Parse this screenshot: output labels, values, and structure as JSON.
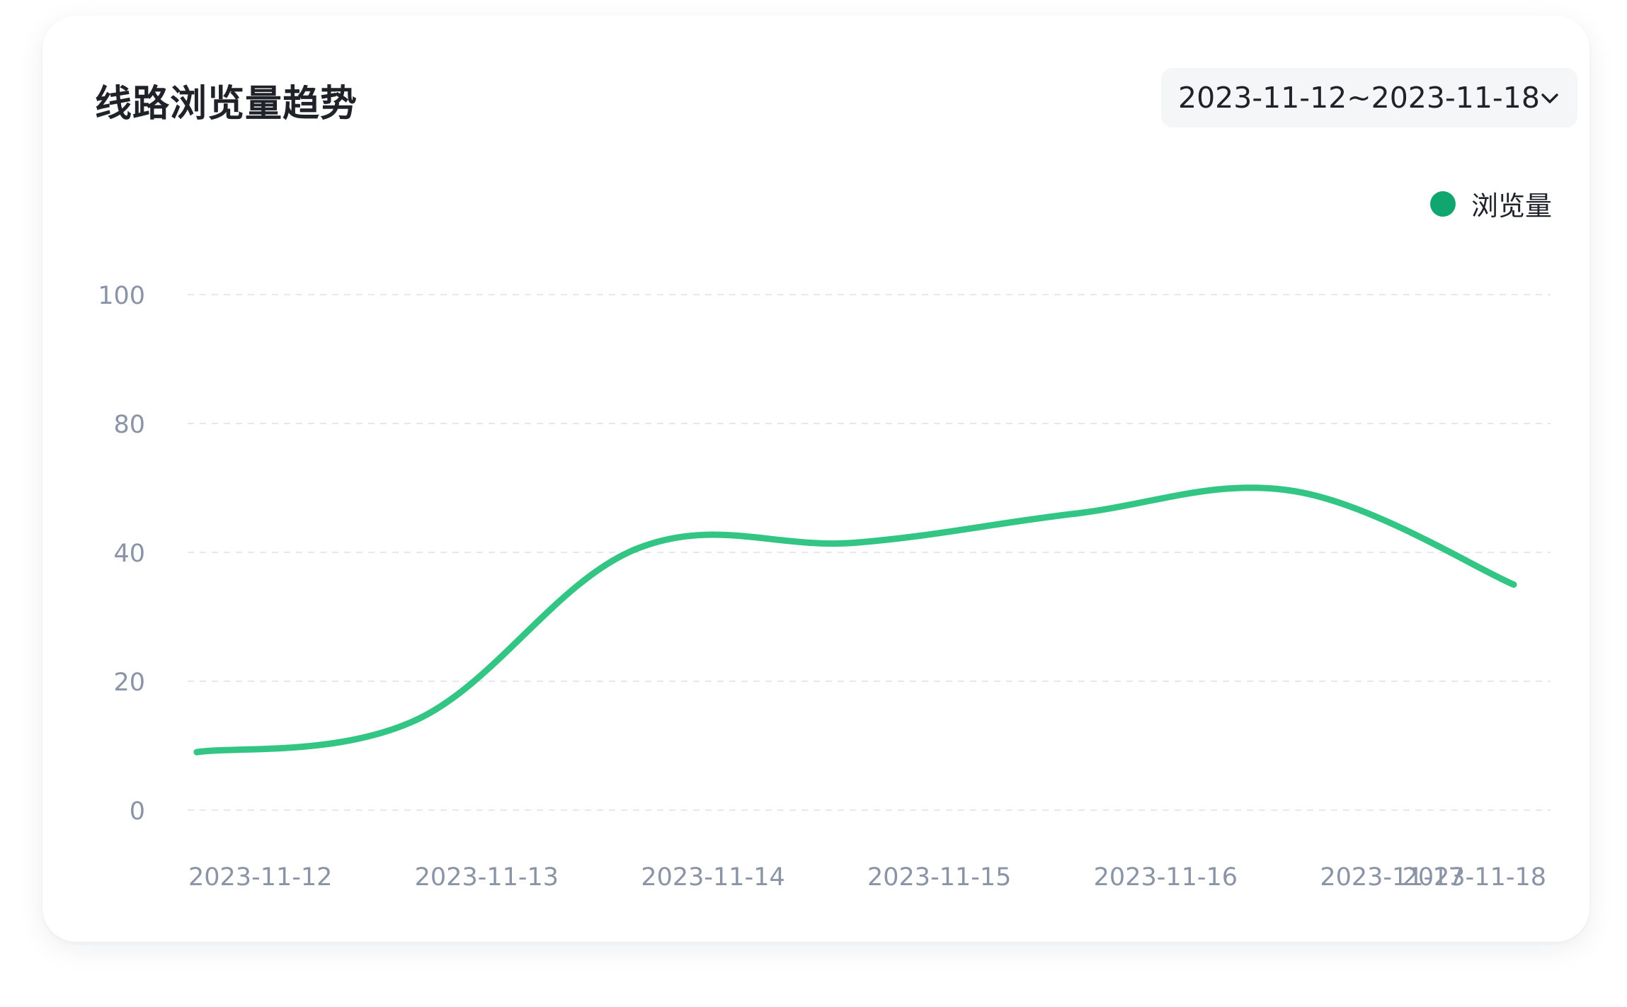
{
  "header": {
    "title": "线路浏览量趋势"
  },
  "range_select": {
    "value": "2023-11-12~2023-11-18",
    "icon": "chevron-down-icon"
  },
  "colors": {
    "line": "#33c584",
    "legend_dot": "#0fa670",
    "grid": "#e5e8ee",
    "tick_text": "#8a94a6"
  },
  "chart_data": {
    "type": "line",
    "categories": [
      "2023-11-12",
      "2023-11-13",
      "2023-11-14",
      "2023-11-15",
      "2023-11-16",
      "2023-11-17",
      "2023-11-18"
    ],
    "series": [
      {
        "name": "浏览量",
        "values": [
          9,
          14,
          41,
          43,
          52,
          59,
          35
        ]
      }
    ],
    "y_ticks": [
      0,
      20,
      40,
      80,
      100
    ],
    "y_tick_labels": [
      "0",
      "20",
      "40",
      "80",
      "100"
    ],
    "xlabel": "",
    "ylabel": "",
    "grid": true,
    "grid_style": "dashed",
    "curve": "smooth",
    "legend_position": "top-right"
  }
}
